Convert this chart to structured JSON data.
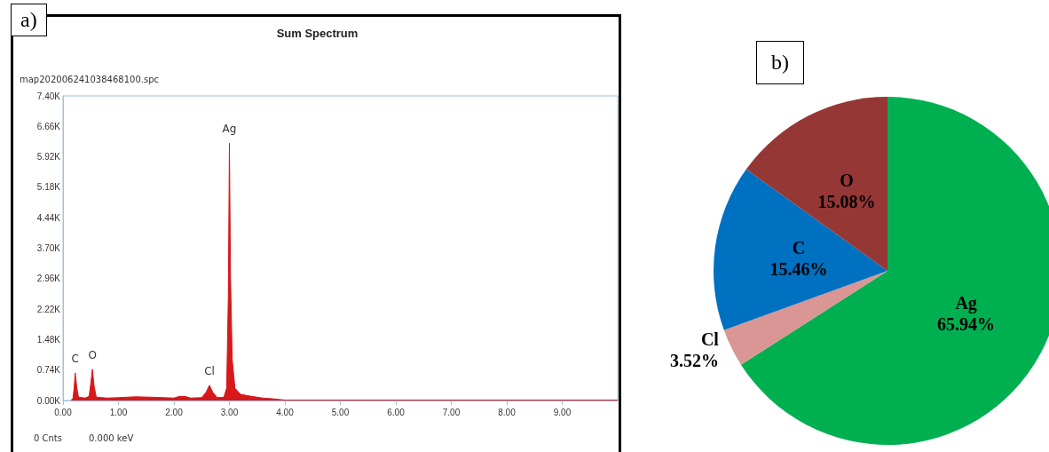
{
  "chart_data": [
    {
      "type": "area",
      "title": "Sum Spectrum",
      "x": [
        0.15,
        0.18,
        0.2,
        0.22,
        0.25,
        0.28,
        0.4,
        0.47,
        0.5,
        0.53,
        0.56,
        0.6,
        0.8,
        1.0,
        1.3,
        1.6,
        2.0,
        2.1,
        2.2,
        2.3,
        2.5,
        2.58,
        2.64,
        2.7,
        2.78,
        2.9,
        2.95,
        2.98,
        3.0,
        3.02,
        3.05,
        3.1,
        3.2,
        3.4,
        3.6,
        3.8,
        4.0,
        10
      ],
      "series": [
        {
          "color": "#d7191c",
          "values": [
            0.02,
            0.05,
            0.3,
            0.67,
            0.3,
            0.08,
            0.06,
            0.1,
            0.4,
            0.76,
            0.35,
            0.08,
            0.06,
            0.07,
            0.09,
            0.08,
            0.06,
            0.1,
            0.1,
            0.06,
            0.07,
            0.2,
            0.37,
            0.2,
            0.07,
            0.08,
            0.3,
            2.5,
            6.25,
            3.0,
            1.0,
            0.3,
            0.15,
            0.1,
            0.06,
            0.04,
            0.01,
            0.01
          ]
        }
      ],
      "xlim": [
        0,
        10
      ],
      "xticks": [
        {
          "value": 0,
          "label": "0.00"
        },
        {
          "value": 1,
          "label": "1.00"
        },
        {
          "value": 2,
          "label": "2.00"
        },
        {
          "value": 3,
          "label": "3.00"
        },
        {
          "value": 4,
          "label": "4.00"
        },
        {
          "value": 5,
          "label": "5.00"
        },
        {
          "value": 6,
          "label": "6.00"
        },
        {
          "value": 7,
          "label": "7.00"
        },
        {
          "value": 8,
          "label": "8.00"
        },
        {
          "value": 9,
          "label": "9.00"
        }
      ],
      "ylim": [
        0,
        7.4
      ],
      "yticks": [
        {
          "value": 0,
          "label": "0.00K"
        },
        {
          "value": 0.74,
          "label": "0.74K"
        },
        {
          "value": 1.48,
          "label": "1.48K"
        },
        {
          "value": 2.22,
          "label": "2.22K"
        },
        {
          "value": 2.96,
          "label": "2.96K"
        },
        {
          "value": 3.7,
          "label": "3.70K"
        },
        {
          "value": 4.44,
          "label": "4.44K"
        },
        {
          "value": 5.18,
          "label": "5.18K"
        },
        {
          "value": 5.92,
          "label": "5.92K"
        },
        {
          "value": 6.66,
          "label": "6.66K"
        },
        {
          "value": 7.4,
          "label": "7.40K"
        }
      ],
      "grid": false,
      "legend": false,
      "annotations": [
        "a)",
        "map202006241038468100.spc",
        "0 Cnts",
        "0.000 keV",
        {
          "text": "C",
          "x": 0.22,
          "y": 0.67
        },
        {
          "text": "O",
          "x": 0.53,
          "y": 0.76
        },
        {
          "text": "Cl",
          "x": 2.64,
          "y": 0.37
        },
        {
          "text": "Ag",
          "x": 3.0,
          "y": 6.25
        }
      ]
    },
    {
      "type": "pie",
      "categories": [
        "Ag",
        "Cl",
        "C",
        "O"
      ],
      "values": [
        65.94,
        3.52,
        15.46,
        15.08
      ],
      "colors": [
        "#00b050",
        "#d99694",
        "#0070c0",
        "#953735"
      ],
      "value_labels": [
        "65.94%",
        "3.52%",
        "15.46%",
        "15.08%"
      ],
      "legend": false,
      "annotations": [
        "b)"
      ]
    }
  ]
}
